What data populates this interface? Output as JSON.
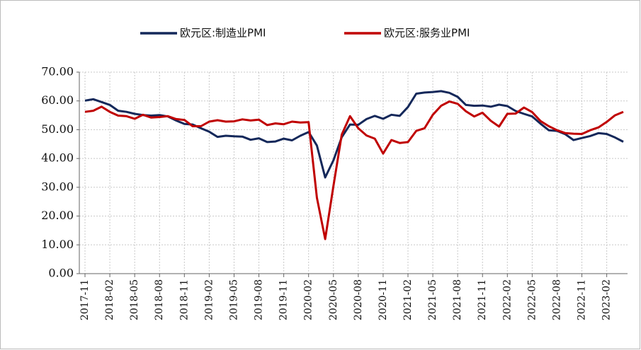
{
  "chart_data": {
    "type": "line",
    "categories": [
      "2017-11",
      null,
      null,
      "2018-02",
      null,
      null,
      "2018-05",
      null,
      null,
      "2018-08",
      null,
      null,
      "2018-11",
      null,
      null,
      "2019-02",
      null,
      null,
      "2019-05",
      null,
      null,
      "2019-08",
      null,
      null,
      "2019-11",
      null,
      null,
      "2020-02",
      null,
      null,
      "2020-05",
      null,
      null,
      "2020-08",
      null,
      null,
      "2020-11",
      null,
      null,
      "2021-02",
      null,
      null,
      "2021-05",
      null,
      null,
      "2021-08",
      null,
      null,
      "2021-11",
      null,
      null,
      "2022-02",
      null,
      null,
      "2022-05",
      null,
      null,
      "2022-08",
      null,
      null,
      "2022-11",
      null,
      null,
      "2023-02",
      null,
      null
    ],
    "series": [
      {
        "name": "欧元区:制造业PMI",
        "color": "#14285a",
        "values": [
          60.1,
          60.6,
          59.6,
          58.6,
          56.6,
          56.2,
          55.5,
          55.1,
          54.9,
          55.1,
          54.6,
          53.2,
          52.0,
          51.8,
          50.5,
          49.3,
          47.5,
          47.9,
          47.7,
          47.6,
          46.5,
          47.0,
          45.7,
          45.9,
          46.9,
          46.3,
          47.9,
          49.2,
          44.5,
          33.4,
          39.4,
          47.4,
          51.8,
          51.7,
          53.7,
          54.8,
          53.8,
          55.2,
          54.8,
          57.9,
          62.5,
          62.9,
          63.1,
          63.4,
          62.8,
          61.4,
          58.6,
          58.3,
          58.4,
          58.0,
          58.7,
          58.2,
          56.5,
          55.5,
          54.6,
          52.1,
          49.8,
          49.6,
          48.4,
          46.4,
          47.1,
          47.8,
          48.8,
          48.5,
          47.3,
          45.8
        ]
      },
      {
        "name": "欧元区:服务业PMI",
        "color": "#c00000",
        "values": [
          56.2,
          56.6,
          58.0,
          56.2,
          54.9,
          54.7,
          53.8,
          55.2,
          54.2,
          54.4,
          54.7,
          53.7,
          53.4,
          51.2,
          51.2,
          52.8,
          53.3,
          52.8,
          52.9,
          53.6,
          53.2,
          53.5,
          51.6,
          52.2,
          51.9,
          52.8,
          52.5,
          52.6,
          26.4,
          12.0,
          30.5,
          48.3,
          54.7,
          50.5,
          48.0,
          46.9,
          41.7,
          46.4,
          45.4,
          45.7,
          49.6,
          50.5,
          55.2,
          58.3,
          59.8,
          59.0,
          56.4,
          54.6,
          55.9,
          53.1,
          51.1,
          55.5,
          55.6,
          57.7,
          56.1,
          53.0,
          51.2,
          49.8,
          48.8,
          48.6,
          48.5,
          49.8,
          50.8,
          52.7,
          55.0,
          56.2
        ]
      }
    ],
    "ylim": [
      0,
      70
    ],
    "yticks": [
      {
        "value": 0,
        "label": "0.00"
      },
      {
        "value": 10,
        "label": "10.00"
      },
      {
        "value": 20,
        "label": "20.00"
      },
      {
        "value": 30,
        "label": "30.00"
      },
      {
        "value": 40,
        "label": "40.00"
      },
      {
        "value": 50,
        "label": "50.00"
      },
      {
        "value": 60,
        "label": "60.00"
      },
      {
        "value": 70,
        "label": "70.00"
      }
    ],
    "grid": true,
    "legend": "top"
  }
}
